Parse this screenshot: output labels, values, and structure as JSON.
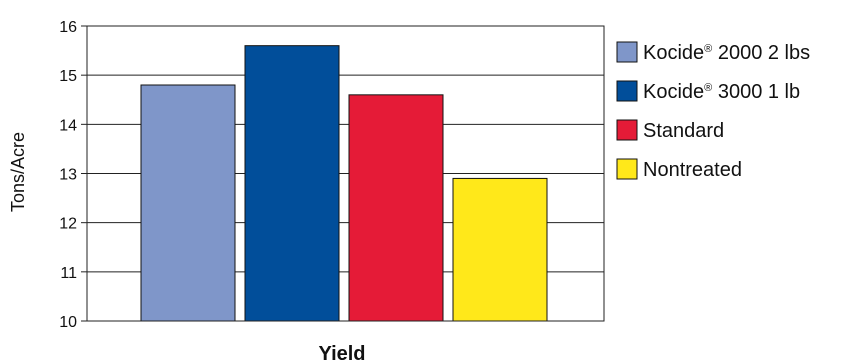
{
  "chart_data": {
    "type": "bar",
    "title": "",
    "xlabel": "Yield",
    "ylabel": "Tons/Acre",
    "ylim": [
      10,
      16
    ],
    "yticks": [
      10,
      11,
      12,
      13,
      14,
      15,
      16
    ],
    "grid": true,
    "legend_position": "right",
    "series": [
      {
        "name": "Kocide® 2000 2 lbs",
        "name_main": "Kocide",
        "name_mark": "®",
        "name_rest": " 2000 2 lbs",
        "value": 14.8,
        "color": "#7f96c9"
      },
      {
        "name": "Kocide® 3000 1 lb",
        "name_main": "Kocide",
        "name_mark": "®",
        "name_rest": " 3000 1 lb",
        "value": 15.6,
        "color": "#014e9a"
      },
      {
        "name": "Standard",
        "name_main": "Standard",
        "name_mark": "",
        "name_rest": "",
        "value": 14.6,
        "color": "#e51b37"
      },
      {
        "name": "Nontreated",
        "name_main": "Nontreated",
        "name_mark": "",
        "name_rest": "",
        "value": 12.9,
        "color": "#ffe81a"
      }
    ]
  }
}
